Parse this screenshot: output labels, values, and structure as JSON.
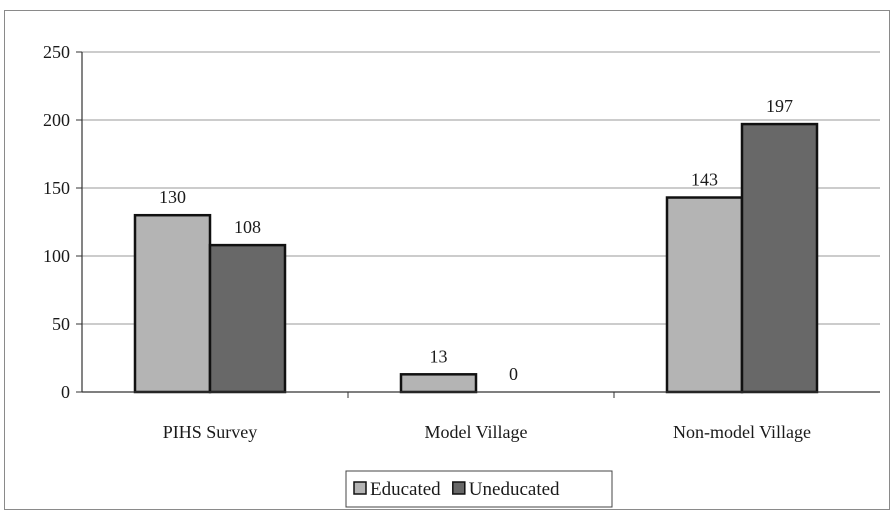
{
  "chart_data": {
    "type": "bar",
    "categories": [
      "PIHS Survey",
      "Model Village",
      "Non-model Village"
    ],
    "series": [
      {
        "name": "Educated",
        "values": [
          130,
          13,
          143
        ],
        "color": "#b4b4b4"
      },
      {
        "name": "Uneducated",
        "values": [
          108,
          0,
          197
        ],
        "color": "#686868"
      }
    ],
    "y_ticks": [
      "0",
      "50",
      "100",
      "150",
      "200",
      "250"
    ],
    "ylim": [
      0,
      250
    ],
    "grid": true,
    "legend_position": "bottom-center"
  }
}
